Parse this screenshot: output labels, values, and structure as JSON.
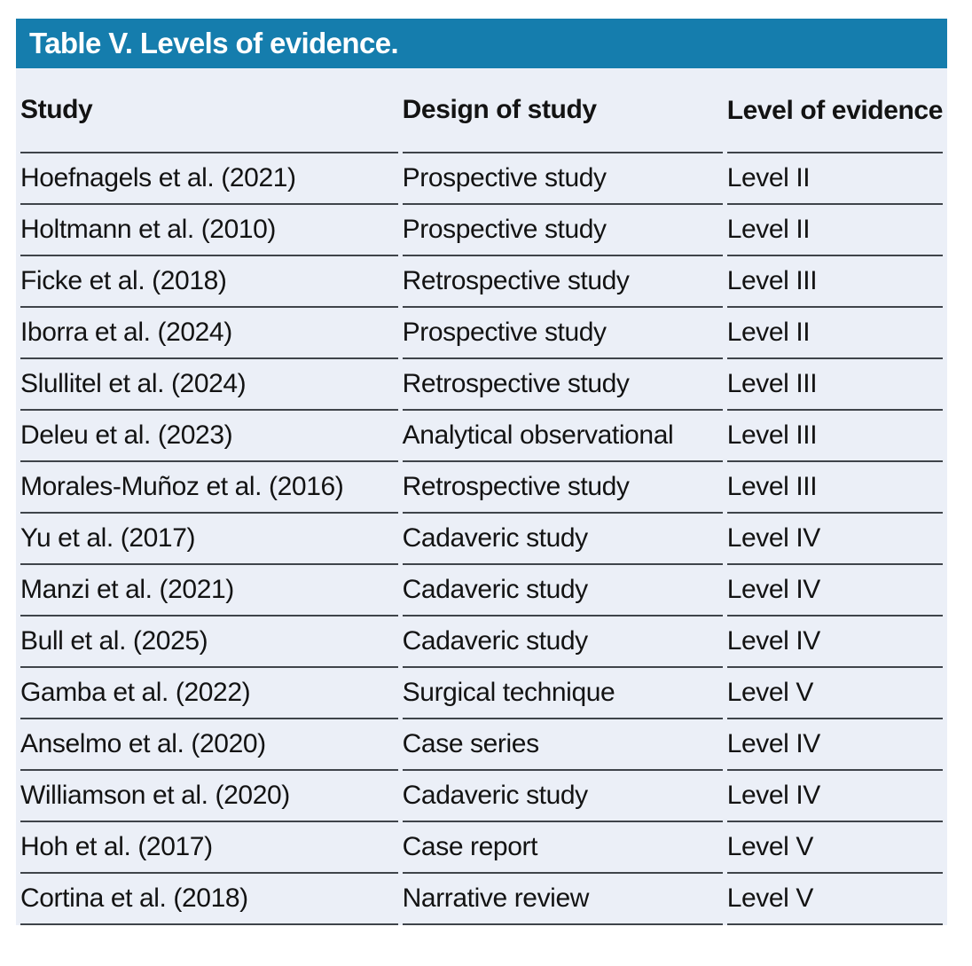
{
  "table": {
    "title": "Table V. Levels of evidence.",
    "columns": [
      {
        "key": "study",
        "label": "Study"
      },
      {
        "key": "design",
        "label": "Design of study"
      },
      {
        "key": "level",
        "label": "Level of evidence"
      }
    ],
    "rows": [
      {
        "study": "Hoefnagels et al. (2021)",
        "design": "Prospective study",
        "level": "Level II"
      },
      {
        "study": "Holtmann et al. (2010)",
        "design": "Prospective study",
        "level": "Level II"
      },
      {
        "study": "Ficke et al. (2018)",
        "design": "Retrospective study",
        "level": "Level III"
      },
      {
        "study": "Iborra et al. (2024)",
        "design": "Prospective study",
        "level": "Level II"
      },
      {
        "study": "Slullitel et al. (2024)",
        "design": "Retrospective study",
        "level": "Level III"
      },
      {
        "study": "Deleu et al. (2023)",
        "design": "Analytical observational",
        "level": "Level III"
      },
      {
        "study": "Morales-Muñoz et al. (2016)",
        "design": "Retrospective study",
        "level": "Level III"
      },
      {
        "study": "Yu et al. (2017)",
        "design": "Cadaveric study",
        "level": "Level IV"
      },
      {
        "study": "Manzi et al. (2021)",
        "design": "Cadaveric study",
        "level": "Level IV"
      },
      {
        "study": "Bull et al. (2025)",
        "design": "Cadaveric study",
        "level": "Level IV"
      },
      {
        "study": "Gamba et al. (2022)",
        "design": "Surgical technique",
        "level": "Level V"
      },
      {
        "study": "Anselmo et al. (2020)",
        "design": "Case series",
        "level": "Level IV"
      },
      {
        "study": "Williamson et al. (2020)",
        "design": "Cadaveric study",
        "level": "Level IV"
      },
      {
        "study": "Hoh et al. (2017)",
        "design": "Case report",
        "level": "Level V"
      },
      {
        "study": "Cortina et al. (2018)",
        "design": "Narrative review",
        "level": "Level V"
      }
    ]
  },
  "colors": {
    "title_bar_bg": "#157dad",
    "title_text": "#ffffff",
    "body_bg": "#ebeff7",
    "row_border": "#3f444a",
    "text": "#131313"
  }
}
